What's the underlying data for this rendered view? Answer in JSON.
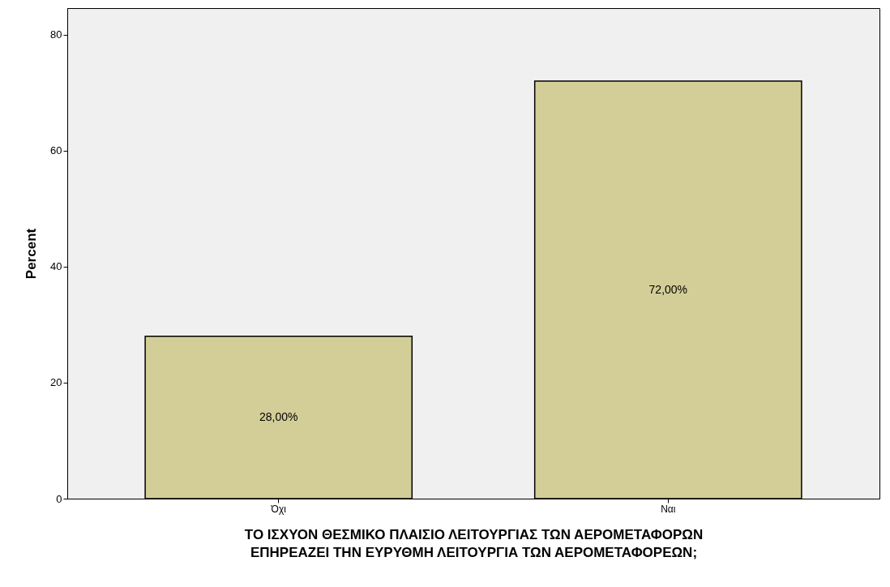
{
  "chart_data": {
    "type": "bar",
    "xlabel": "ΤΟ ΙΣΧΥΟΝ ΘΕΣΜΙΚΟ ΠΛΑΙΣΙΟ ΛΕΙΤΟΥΡΓΙΑΣ ΤΩΝ ΑΕΡΟΜΕΤΑΦΟΡΩΝ ΕΠΗΡΕΑΖΕΙ ΤΗΝ ΕΥΡΥΘΜΗ ΛΕΙΤΟΥΡΓΙΑ ΤΩΝ ΑΕΡΟΜΕΤΑΦΟΡΕΩΝ;",
    "ylabel": "Percent",
    "categories": [
      "Όχι",
      "Ναι"
    ],
    "values": [
      28,
      72
    ],
    "value_labels": [
      "28,00%",
      "72,00%"
    ],
    "color": "#d3ce97",
    "ylim": [
      0,
      84.6
    ],
    "yticks": [
      0,
      20,
      40,
      60,
      80
    ],
    "grid": false
  }
}
